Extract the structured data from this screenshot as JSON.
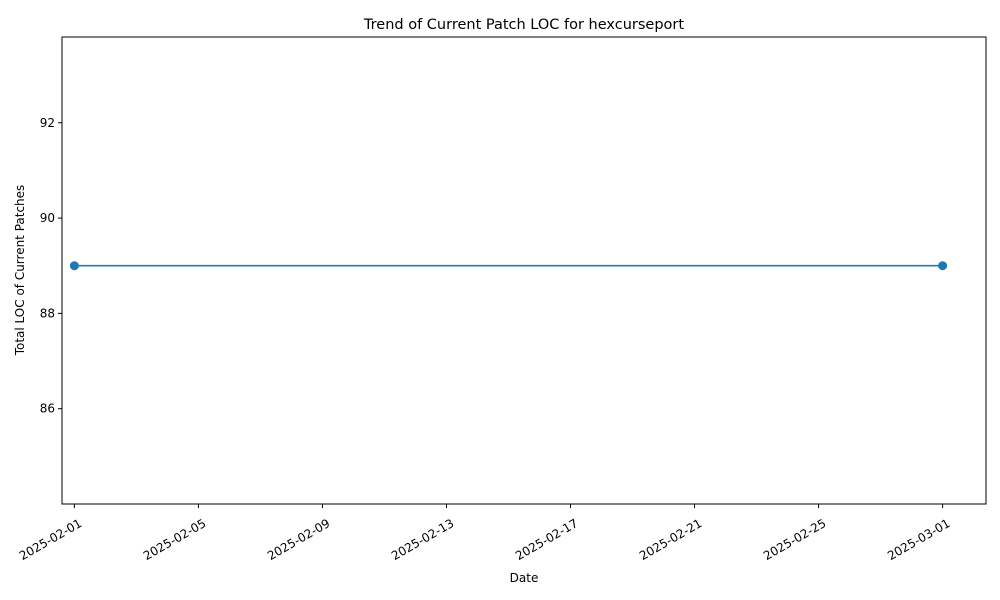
{
  "chart_data": {
    "type": "line",
    "title": "Trend of Current Patch LOC for hexcurseport",
    "xlabel": "Date",
    "ylabel": "Total LOC of Current Patches",
    "x_ticks": [
      "2025-02-01",
      "2025-02-05",
      "2025-02-09",
      "2025-02-13",
      "2025-02-17",
      "2025-02-21",
      "2025-02-25",
      "2025-03-01"
    ],
    "y_ticks": [
      86,
      88,
      90,
      92
    ],
    "xlim": [
      "2025-01-31T14:24:00",
      "2025-03-02T09:36:00"
    ],
    "ylim": [
      84.0,
      93.8
    ],
    "grid": false,
    "series": [
      {
        "color": "#1f77b4",
        "marker": "circle",
        "points": [
          {
            "x": "2025-02-01",
            "y": 89
          },
          {
            "x": "2025-03-01",
            "y": 89
          }
        ]
      }
    ]
  }
}
